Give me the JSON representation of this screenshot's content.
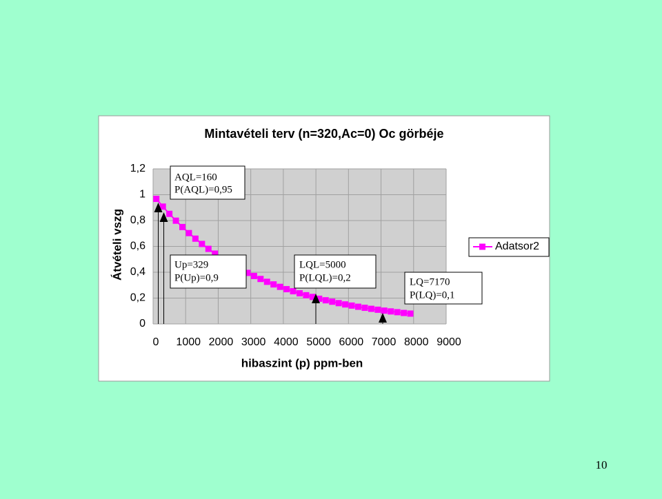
{
  "chart_data": {
    "type": "line",
    "title": "Mintavételi terv (n=320,Ac=0) Oc görbéje",
    "x_label": "hibaszint (p) ppm-ben",
    "y_label": "Átvételi vszg",
    "x": [
      100,
      300,
      500,
      700,
      900,
      1100,
      1300,
      1500,
      1700,
      1900,
      2100,
      2300,
      2500,
      2700,
      2900,
      3100,
      3300,
      3500,
      3700,
      3900,
      4100,
      4300,
      4500,
      4700,
      4900,
      5100,
      5300,
      5500,
      5700,
      5900,
      6100,
      6300,
      6500,
      6700,
      6900,
      7100,
      7300,
      7500,
      7700,
      7900
    ],
    "series": [
      {
        "name": "Adatsor2",
        "color": "#ff00ff",
        "values": [
          0.968,
          0.908,
          0.852,
          0.799,
          0.75,
          0.703,
          0.66,
          0.619,
          0.581,
          0.544,
          0.511,
          0.479,
          0.449,
          0.422,
          0.395,
          0.371,
          0.348,
          0.326,
          0.306,
          0.287,
          0.269,
          0.253,
          0.237,
          0.222,
          0.209,
          0.195,
          0.183,
          0.172,
          0.161,
          0.151,
          0.142,
          0.133,
          0.125,
          0.117,
          0.11,
          0.103,
          0.097,
          0.091,
          0.085,
          0.08
        ]
      }
    ],
    "xlim": [
      0,
      9000
    ],
    "xticks": [
      0,
      1000,
      2000,
      3000,
      4000,
      5000,
      6000,
      7000,
      8000,
      9000
    ],
    "ylim": [
      0,
      1.2
    ],
    "yticks": [
      0,
      {
        "value": 0.2,
        "label": "0,2"
      },
      {
        "value": 0.4,
        "label": "0,4"
      },
      {
        "value": 0.6,
        "label": "0,6"
      },
      {
        "value": 0.8,
        "label": "0,8"
      },
      1,
      {
        "value": 1.2,
        "label": "1,2"
      }
    ],
    "grid": true,
    "legend": "right",
    "annotations": [
      [
        "AQL=160",
        "P(AQL)=0,95"
      ],
      [
        "Up=329",
        "P(Up)=0,9"
      ],
      [
        "LQL=5000",
        "P(LQL)=0,2"
      ],
      [
        "LQ=7170",
        "P(LQ)=0,1"
      ]
    ]
  },
  "page_number": "10"
}
